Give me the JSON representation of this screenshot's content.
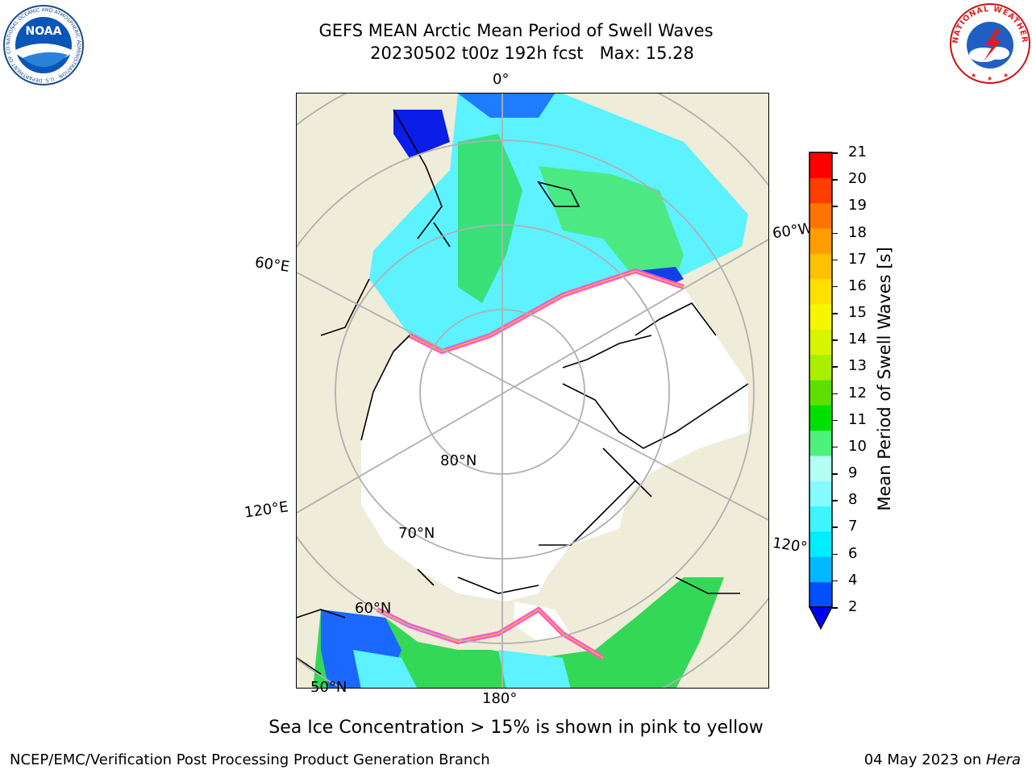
{
  "header": {
    "title_line1": "GEFS MEAN Arctic Mean Period of Swell Waves",
    "title_line2": "20230502 t00z 192h fcst   Max: 15.28"
  },
  "logos": {
    "noaa_text": "NOAA",
    "noaa_ring": "NATIONAL OCEANIC AND ATMOSPHERIC ADMINISTRATION · U.S. DEPARTMENT OF COMMERCE ·",
    "nws_ring": "NATIONAL WEATHER SERVICE"
  },
  "map_labels": {
    "lon_0": "0°",
    "lon_60w": "60°W",
    "lon_60e": "60°E",
    "lon_120e": "120°E",
    "lon_120w": "120°",
    "lon_180": "180°",
    "lat_80n": "80°N",
    "lat_70n": "70°N",
    "lat_60n": "60°N",
    "lat_50n": "50°N"
  },
  "colorbar": {
    "title": "Mean Period of Swell Waves [s]",
    "ticks": [
      "2",
      "4",
      "6",
      "7",
      "8",
      "9",
      "10",
      "11",
      "12",
      "13",
      "14",
      "15",
      "16",
      "17",
      "18",
      "19",
      "20",
      "21"
    ],
    "colors": [
      "#0050ff",
      "#00b8ff",
      "#00ecff",
      "#3df4ff",
      "#86fbff",
      "#b4fff4",
      "#4cf27a",
      "#00e000",
      "#5de000",
      "#aaee00",
      "#d8f500",
      "#f6f600",
      "#ffe000",
      "#ffc000",
      "#ff9d00",
      "#ff7400",
      "#ff3d00",
      "#ff0000"
    ],
    "under_color": "#0000ee"
  },
  "caption": "Sea Ice Concentration > 15% is shown in pink to yellow",
  "footer": {
    "left": "NCEP/EMC/Verification Post Processing Product Generation Branch",
    "right_prefix": "04 May 2023 on ",
    "right_host": "Hera"
  }
}
